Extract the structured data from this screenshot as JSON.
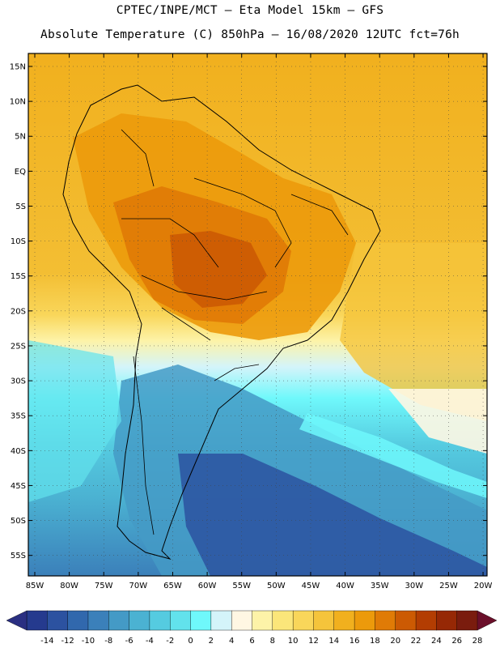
{
  "header": {
    "line1": "CPTEC/INPE/MCT –  Eta Model 15km – GFS",
    "line2": "Absolute Temperature (C) 850hPa – 16/08/2020 12UTC fct=76h"
  },
  "map": {
    "lat_labels": [
      "15N",
      "10N",
      "5N",
      "EQ",
      "5S",
      "10S",
      "15S",
      "20S",
      "25S",
      "30S",
      "35S",
      "40S",
      "45S",
      "50S",
      "55S"
    ],
    "lon_labels": [
      "85W",
      "80W",
      "75W",
      "70W",
      "65W",
      "60W",
      "55W",
      "50W",
      "45W",
      "40W",
      "35W",
      "30W",
      "25W",
      "20W"
    ]
  },
  "legend": {
    "labels": [
      "-14",
      "-12",
      "-10",
      "-8",
      "-6",
      "-4",
      "-2",
      "0",
      "2",
      "4",
      "6",
      "8",
      "10",
      "12",
      "14",
      "16",
      "18",
      "20",
      "22",
      "24",
      "26",
      "28"
    ],
    "colors": [
      "#253a8e",
      "#2c52a0",
      "#3168ad",
      "#3b80ba",
      "#449ac6",
      "#4bb2d2",
      "#55cbe0",
      "#62e2ec",
      "#6ff8fb",
      "#d4f4fa",
      "#fff7e3",
      "#fdf3a8",
      "#fbe67a",
      "#f9d65a",
      "#f5c43b",
      "#f1b01e",
      "#ec9a0b",
      "#e07b06",
      "#cc5a03",
      "#b33d02",
      "#962805",
      "#7a1c0e"
    ],
    "low_arrow_color": "#2a2f82",
    "high_arrow_color": "#6b0f2a"
  }
}
